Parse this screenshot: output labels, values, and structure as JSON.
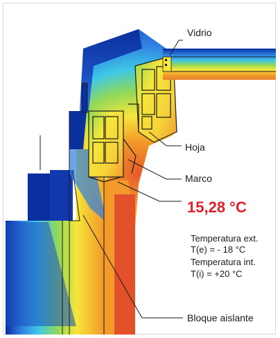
{
  "labels": {
    "vidrio": "Vidrio",
    "hoja": "Hoja",
    "marco": "Marco",
    "bloque": "Bloque aislante"
  },
  "surface_temperature": "15,28 °C",
  "conditions": {
    "ext_title": "Temperatura ext.",
    "ext_value": "T(e) = - 18 °C",
    "int_title": "Temperatura int.",
    "int_value": "T(i) = +20 °C"
  },
  "colors": {
    "cold": "#0a2f9e",
    "mid_blue": "#2f7fe0",
    "cyan": "#3fc7e8",
    "green": "#7fd35a",
    "yellow": "#f6e63a",
    "orange": "#f39a2a",
    "hot": "#e2512a",
    "highlight": "#e0202a"
  }
}
